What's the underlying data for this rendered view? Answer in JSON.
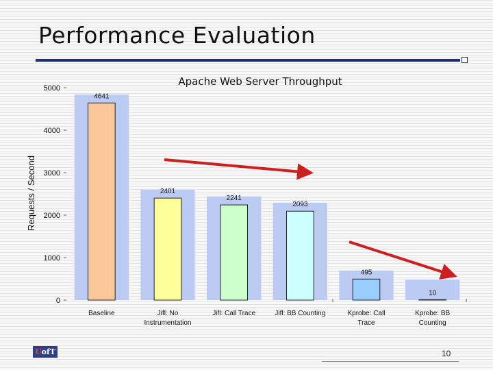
{
  "slide": {
    "title": "Performance Evaluation",
    "page_number": "10"
  },
  "logo": {
    "text": "U of T"
  },
  "chart_data": {
    "type": "bar",
    "title": "Apache Web Server Throughput",
    "xlabel": "",
    "ylabel": "Requests / Second",
    "ylim": [
      0,
      5000
    ],
    "yticks": [
      0,
      1000,
      2000,
      3000,
      4000,
      5000
    ],
    "categories": [
      "Baseline",
      "Jifl: No Instrumentation",
      "Jifl: Call Trace",
      "Jifl: BB Counting",
      "Kprobe: Call Trace",
      "Kprobe: BB Counting"
    ],
    "category_lines": [
      [
        "Baseline"
      ],
      [
        "Jifl: No",
        "Instrumentation"
      ],
      [
        "Jifl: Call Trace"
      ],
      [
        "Jifl: BB Counting"
      ],
      [
        "Kprobe: Call",
        "Trace"
      ],
      [
        "Kprobe: BB",
        "Counting"
      ]
    ],
    "values": [
      4641,
      2401,
      2241,
      2093,
      495,
      10
    ],
    "bar_colors": [
      "#fcc89a",
      "#ffff99",
      "#ccffcc",
      "#ccffff",
      "#99ccff",
      "#ffc0cb"
    ],
    "background_bar_color": "#bccbf2",
    "arrow_color": "#cc1f1f",
    "grid": false,
    "legend": "none"
  }
}
